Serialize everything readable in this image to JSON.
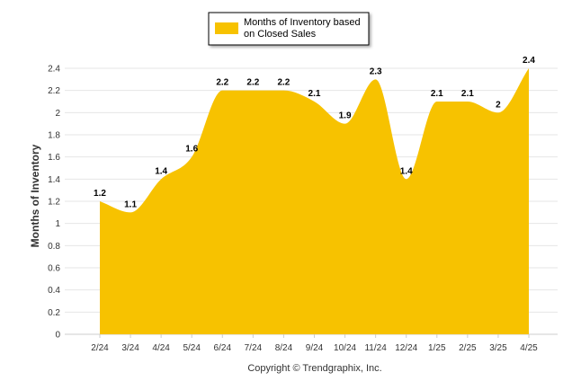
{
  "chart_data": {
    "type": "area",
    "title": "",
    "categories": [
      "2/24",
      "3/24",
      "4/24",
      "5/24",
      "6/24",
      "7/24",
      "8/24",
      "9/24",
      "10/24",
      "11/24",
      "12/24",
      "1/25",
      "2/25",
      "3/25",
      "4/25"
    ],
    "series": [
      {
        "name": "Months of Inventory based on Closed Sales",
        "legend_lines": [
          "Months of Inventory based",
          "on Closed Sales"
        ],
        "color": "#f7c200",
        "values": [
          1.2,
          1.1,
          1.4,
          1.6,
          2.2,
          2.2,
          2.2,
          2.1,
          1.9,
          2.3,
          1.4,
          2.1,
          2.1,
          2.0,
          2.4
        ],
        "labels": [
          "1.2",
          "1.1",
          "1.4",
          "1.6",
          "2.2",
          "2.2",
          "2.2",
          "2.1",
          "1.9",
          "2.3",
          "1.4",
          "2.1",
          "2.1",
          "2",
          "2.4"
        ]
      }
    ],
    "ylabel": "Months of Inventory",
    "xlabel": "",
    "ylim": [
      0,
      2.4
    ],
    "yticks": [
      "0",
      "0.2",
      "0.4",
      "0.6",
      "0.8",
      "1",
      "1.2",
      "1.4",
      "1.6",
      "1.8",
      "2",
      "2.2",
      "2.4"
    ],
    "grid": true,
    "legend_position": "top-center"
  },
  "footer": {
    "copyright": "Copyright © Trendgraphix, Inc."
  }
}
